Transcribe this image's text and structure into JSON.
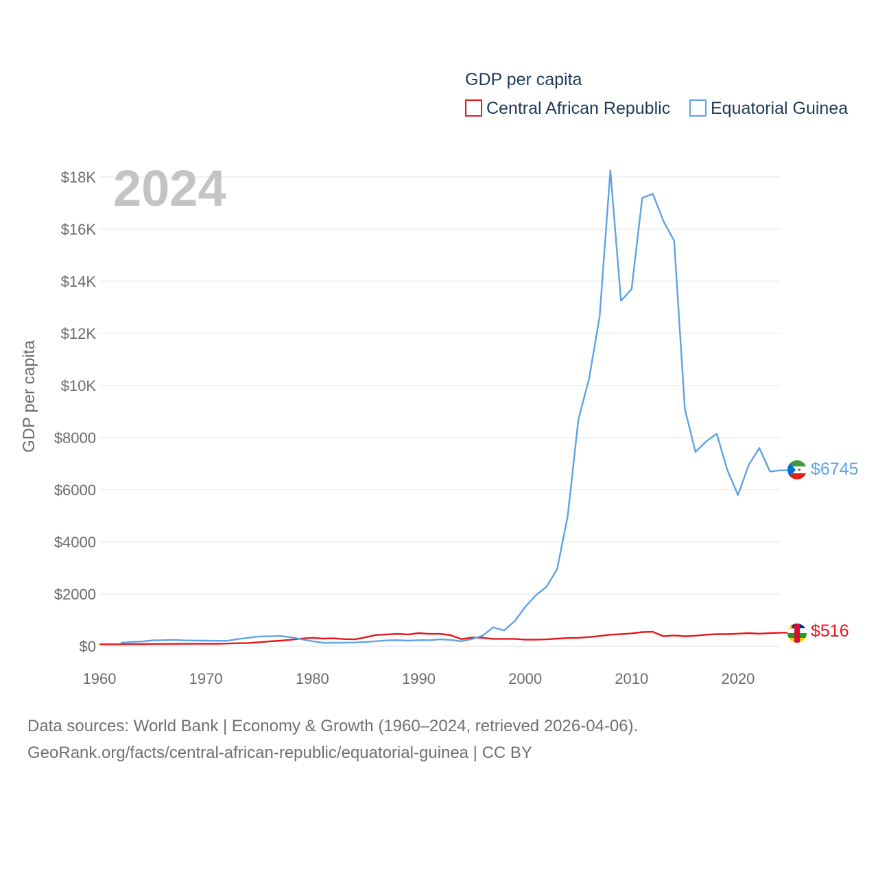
{
  "chart_data": {
    "type": "line",
    "legend_title": "GDP per capita",
    "ylabel": "GDP per capita",
    "year_watermark": "2024",
    "xlim": [
      1960,
      2024
    ],
    "ylim": [
      0,
      18000
    ],
    "x_ticks": [
      {
        "value": 1960,
        "label": "1960"
      },
      {
        "value": 1970,
        "label": "1970"
      },
      {
        "value": 1980,
        "label": "1980"
      },
      {
        "value": 1990,
        "label": "1990"
      },
      {
        "value": 2000,
        "label": "2000"
      },
      {
        "value": 2010,
        "label": "2010"
      },
      {
        "value": 2020,
        "label": "2020"
      }
    ],
    "y_ticks": [
      {
        "value": 0,
        "label": "$0"
      },
      {
        "value": 2000,
        "label": "$2000"
      },
      {
        "value": 4000,
        "label": "$4000"
      },
      {
        "value": 6000,
        "label": "$6000"
      },
      {
        "value": 8000,
        "label": "$8000"
      },
      {
        "value": 10000,
        "label": "$10K"
      },
      {
        "value": 12000,
        "label": "$12K"
      },
      {
        "value": 14000,
        "label": "$14K"
      },
      {
        "value": 16000,
        "label": "$16K"
      },
      {
        "value": 18000,
        "label": "$18K"
      }
    ],
    "series": [
      {
        "name": "Central African Republic",
        "color": "#e8151b",
        "end_label": "$516",
        "flag": "central-african-republic-flag-icon",
        "x": [
          1960,
          1961,
          1962,
          1963,
          1964,
          1965,
          1966,
          1967,
          1968,
          1969,
          1970,
          1971,
          1972,
          1973,
          1974,
          1975,
          1976,
          1977,
          1978,
          1979,
          1980,
          1981,
          1982,
          1983,
          1984,
          1985,
          1986,
          1987,
          1988,
          1989,
          1990,
          1991,
          1992,
          1993,
          1994,
          1995,
          1996,
          1997,
          1998,
          1999,
          2000,
          2001,
          2002,
          2003,
          2004,
          2005,
          2006,
          2007,
          2008,
          2009,
          2010,
          2011,
          2012,
          2013,
          2014,
          2015,
          2016,
          2017,
          2018,
          2019,
          2020,
          2021,
          2022,
          2023,
          2024
        ],
        "values": [
          70,
          72,
          74,
          76,
          80,
          84,
          86,
          86,
          90,
          92,
          90,
          92,
          100,
          112,
          120,
          150,
          185,
          210,
          245,
          290,
          320,
          290,
          300,
          270,
          260,
          340,
          430,
          450,
          470,
          450,
          500,
          470,
          470,
          420,
          270,
          330,
          320,
          280,
          280,
          280,
          250,
          250,
          260,
          290,
          310,
          320,
          350,
          390,
          440,
          460,
          490,
          540,
          550,
          380,
          410,
          380,
          400,
          440,
          460,
          460,
          480,
          500,
          480,
          500,
          516
        ]
      },
      {
        "name": "Equatorial Guinea",
        "color": "#5da3e4",
        "end_label": "$6745",
        "flag": "equatorial-guinea-flag-icon",
        "x": [
          1962,
          1963,
          1964,
          1965,
          1966,
          1967,
          1968,
          1969,
          1970,
          1971,
          1972,
          1973,
          1974,
          1975,
          1976,
          1977,
          1978,
          1979,
          1980,
          1981,
          1982,
          1983,
          1984,
          1985,
          1986,
          1987,
          1988,
          1989,
          1990,
          1991,
          1992,
          1993,
          1994,
          1995,
          1996,
          1997,
          1998,
          1999,
          2000,
          2001,
          2002,
          2003,
          2004,
          2005,
          2006,
          2007,
          2008,
          2009,
          2010,
          2011,
          2012,
          2013,
          2014,
          2015,
          2016,
          2017,
          2018,
          2019,
          2020,
          2021,
          2022,
          2023,
          2024
        ],
        "values": [
          130,
          160,
          180,
          220,
          230,
          240,
          220,
          215,
          210,
          205,
          205,
          270,
          320,
          370,
          380,
          390,
          340,
          260,
          190,
          130,
          130,
          135,
          140,
          160,
          190,
          220,
          230,
          210,
          230,
          230,
          260,
          240,
          190,
          270,
          400,
          720,
          600,
          950,
          1500,
          1950,
          2280,
          2950,
          5000,
          8700,
          10250,
          12650,
          18250,
          13250,
          13700,
          17200,
          17350,
          16300,
          15550,
          9100,
          7450,
          7850,
          8150,
          6750,
          5800,
          6950,
          7600,
          6700,
          6745
        ]
      }
    ]
  },
  "source": {
    "line1": "Data sources: World Bank | Economy & Growth (1960–2024, retrieved 2026-04-06).",
    "line2": "GeoRank.org/facts/central-african-republic/equatorial-guinea | CC BY"
  }
}
